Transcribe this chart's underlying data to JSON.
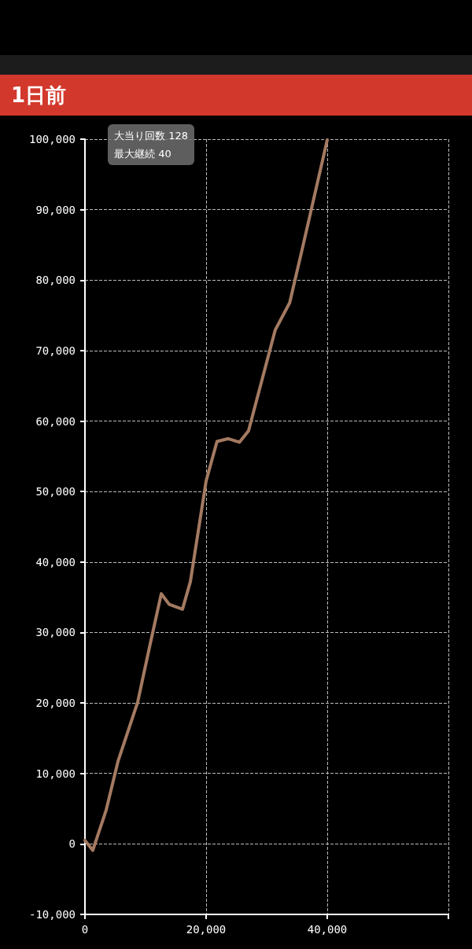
{
  "chart_data": {
    "type": "line",
    "title": "1日前",
    "annotations": [
      "大当り回数 128",
      "最大継続 40"
    ],
    "x": [
      0,
      1300,
      3500,
      5450,
      8700,
      10650,
      12600,
      13900,
      16100,
      17400,
      20000,
      21800,
      23600,
      25500,
      27000,
      31400,
      33800,
      36000,
      40000
    ],
    "series": [
      {
        "color": "#a47a62",
        "values": [
          500,
          -900,
          4800,
          11700,
          20100,
          27900,
          35500,
          34000,
          33300,
          37200,
          51500,
          57100,
          57500,
          57000,
          58600,
          72900,
          76800,
          84900,
          99900
        ]
      }
    ],
    "xlim": [
      0,
      60000
    ],
    "xticks": [
      0,
      {
        "value": 20000,
        "label": "20,000"
      },
      {
        "value": 40000,
        "label": "40,000"
      },
      {
        "value": 60000,
        "label": null
      }
    ],
    "ylim": [
      -10000,
      100000
    ],
    "yticks": [
      {
        "value": -10000,
        "label": "-10,000"
      },
      0,
      {
        "value": 10000,
        "label": "10,000"
      },
      {
        "value": 20000,
        "label": "20,000"
      },
      {
        "value": 30000,
        "label": "30,000"
      },
      {
        "value": 40000,
        "label": "40,000"
      },
      {
        "value": 50000,
        "label": "50,000"
      },
      {
        "value": 60000,
        "label": "60,000"
      },
      {
        "value": 70000,
        "label": "70,000"
      },
      {
        "value": 80000,
        "label": "80,000"
      },
      {
        "value": 90000,
        "label": "90,000"
      },
      {
        "value": 100000,
        "label": "100,000"
      }
    ],
    "grid": true,
    "marker": "none",
    "line_style": "solid"
  }
}
